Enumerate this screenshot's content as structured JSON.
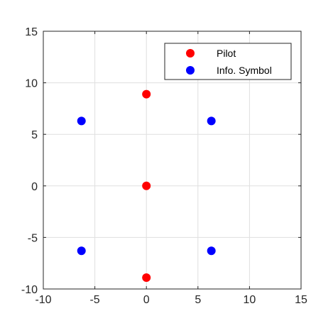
{
  "chart_data": {
    "type": "scatter",
    "title": "",
    "xlabel": "",
    "ylabel": "",
    "xlim": [
      -10,
      15
    ],
    "ylim": [
      -10,
      15
    ],
    "xticks": [
      -10,
      -5,
      0,
      5,
      10,
      15
    ],
    "yticks": [
      -10,
      -5,
      0,
      5,
      10,
      15
    ],
    "grid": true,
    "legend_position": "top-right",
    "series": [
      {
        "name": "Pilot",
        "color": "#ff0000",
        "points": [
          [
            0,
            8.9
          ],
          [
            0,
            0
          ],
          [
            0,
            -8.9
          ]
        ]
      },
      {
        "name": "Info. Symbol",
        "color": "#0000ff",
        "points": [
          [
            -6.3,
            6.3
          ],
          [
            6.3,
            6.3
          ],
          [
            -6.3,
            -6.3
          ],
          [
            6.3,
            -6.3
          ]
        ]
      }
    ]
  }
}
